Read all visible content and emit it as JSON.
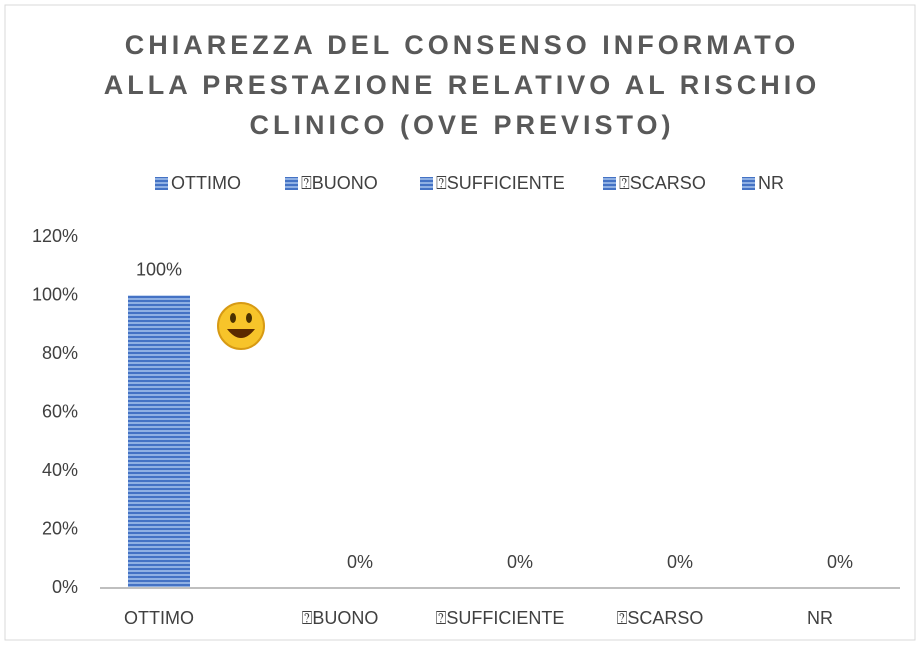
{
  "chart_data": {
    "type": "bar",
    "title": [
      "CHIAREZZA DEL CONSENSO INFORMATO",
      "ALLA PRESTAZIONE RELATIVO AL RISCHIO",
      "CLINICO (OVE PREVISTO)"
    ],
    "categories": [
      "OTTIMO",
      "⍰BUONO",
      "⍰SUFFICIENTE",
      "⍰SCARSO",
      "NR"
    ],
    "values": [
      100,
      0,
      0,
      0,
      0
    ],
    "value_labels": [
      "100%",
      "0%",
      "0%",
      "0%",
      "0%"
    ],
    "color": "#4472c4",
    "ylim": [
      0,
      120
    ],
    "yticks": [
      {
        "value": 0,
        "label": "0%"
      },
      {
        "value": 20,
        "label": "20%"
      },
      {
        "value": 40,
        "label": "40%"
      },
      {
        "value": 60,
        "label": "60%"
      },
      {
        "value": 80,
        "label": "80%"
      },
      {
        "value": 100,
        "label": "100%"
      },
      {
        "value": 120,
        "label": "120%"
      }
    ],
    "grid": false,
    "legend": "top"
  }
}
